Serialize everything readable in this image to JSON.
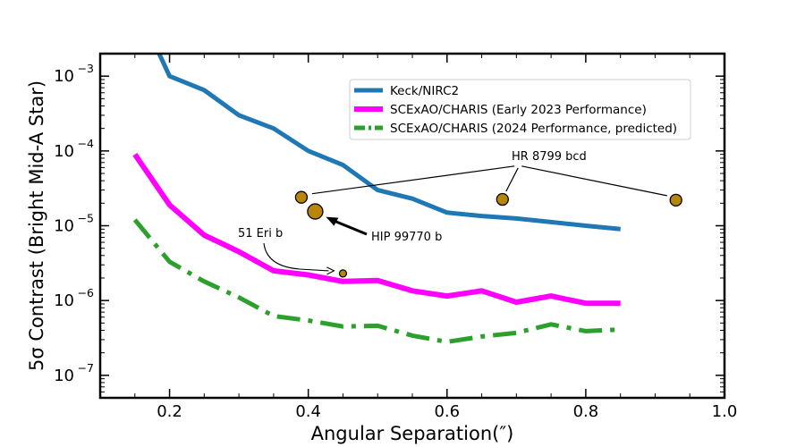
{
  "chart_data": {
    "type": "line",
    "xlabel": "Angular Separation(″)",
    "ylabel": "5σ Contrast (Bright Mid-A Star)",
    "xlim": [
      0.1,
      1.0
    ],
    "ylim": [
      5e-08,
      0.002
    ],
    "yscale": "log",
    "grid": false,
    "legend_position": "top-right",
    "x_ticks": [
      0.2,
      0.4,
      0.6,
      0.8,
      1.0
    ],
    "x_tick_labels": [
      "0.2",
      "0.4",
      "0.6",
      "0.8",
      "1.0"
    ],
    "y_ticks": [
      1e-07,
      1e-06,
      1e-05,
      0.0001,
      0.001
    ],
    "y_tick_labels": [
      {
        "base": "10",
        "exp": "−7"
      },
      {
        "base": "10",
        "exp": "−6"
      },
      {
        "base": "10",
        "exp": "−5"
      },
      {
        "base": "10",
        "exp": "−4"
      },
      {
        "base": "10",
        "exp": "−3"
      }
    ],
    "series": [
      {
        "name": "Keck/NIRC2",
        "color": "#1f77b4",
        "style": "solid",
        "x": [
          0.15,
          0.2,
          0.25,
          0.3,
          0.35,
          0.4,
          0.45,
          0.5,
          0.55,
          0.6,
          0.65,
          0.7,
          0.75,
          0.8,
          0.85
        ],
        "y": [
          0.01,
          0.001,
          0.00065,
          0.0003,
          0.0002,
          0.0001,
          6.5e-05,
          3e-05,
          2.3e-05,
          1.5e-05,
          1.35e-05,
          1.25e-05,
          1.12e-05,
          1e-05,
          9e-06
        ]
      },
      {
        "name": "SCExAO/CHARIS (Early 2023 Performance)",
        "color": "#ff00ff",
        "style": "solid",
        "x": [
          0.15,
          0.2,
          0.25,
          0.3,
          0.35,
          0.4,
          0.45,
          0.5,
          0.55,
          0.6,
          0.65,
          0.7,
          0.75,
          0.8,
          0.85
        ],
        "y": [
          9e-05,
          1.9e-05,
          7.5e-06,
          4.5e-06,
          2.5e-06,
          2.2e-06,
          1.8e-06,
          1.85e-06,
          1.35e-06,
          1.15e-06,
          1.35e-06,
          9.5e-07,
          1.15e-06,
          9.2e-07,
          9.2e-07
        ]
      },
      {
        "name": "SCExAO/CHARIS (2024 Performance, predicted)",
        "color": "#2ca02c",
        "style": "dashdot",
        "x": [
          0.15,
          0.2,
          0.25,
          0.3,
          0.35,
          0.4,
          0.45,
          0.5,
          0.55,
          0.6,
          0.65,
          0.7,
          0.75,
          0.8,
          0.85
        ],
        "y": [
          1.2e-05,
          3.3e-06,
          1.8e-06,
          1.1e-06,
          6.2e-07,
          5.4e-07,
          4.5e-07,
          4.6e-07,
          3.4e-07,
          2.8e-07,
          3.3e-07,
          3.7e-07,
          4.8e-07,
          3.9e-07,
          4.1e-07
        ]
      }
    ],
    "points": [
      {
        "x": 0.39,
        "y": 2.4e-05,
        "size": "medium",
        "group": "HR 8799 bcd"
      },
      {
        "x": 0.68,
        "y": 2.25e-05,
        "size": "medium",
        "group": "HR 8799 bcd"
      },
      {
        "x": 0.93,
        "y": 2.2e-05,
        "size": "medium",
        "group": "HR 8799 bcd"
      },
      {
        "x": 0.41,
        "y": 1.55e-05,
        "size": "large",
        "group": "HIP 99770 b"
      },
      {
        "x": 0.45,
        "y": 2.3e-06,
        "size": "small",
        "group": "51 Eri b"
      }
    ],
    "point_color": "#b8860b",
    "annotations": [
      {
        "text": "HR 8799 bcd",
        "x": 0.705,
        "y": 8e-05
      },
      {
        "text": "HIP 99770 b",
        "x": 0.475,
        "y": 6.5e-06
      },
      {
        "text": "51 Eri b",
        "x": 0.33,
        "y": 7.5e-06
      }
    ]
  }
}
